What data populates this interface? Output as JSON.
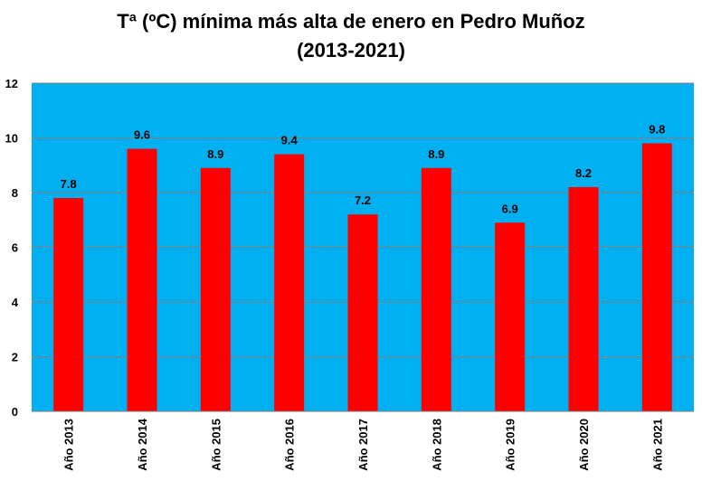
{
  "chart_data": {
    "type": "bar",
    "title": "Tª (ºC) mínima más alta de enero en Pedro Muñoz",
    "subtitle": "(2013-2021)",
    "xlabel": "",
    "ylabel": "",
    "categories": [
      "Año 2013",
      "Año 2014",
      "Año 2015",
      "Año 2016",
      "Año 2017",
      "Año 2018",
      "Año 2019",
      "Año 2020",
      "Año 2021"
    ],
    "values": [
      7.8,
      9.6,
      8.9,
      9.4,
      7.2,
      8.9,
      6.9,
      8.2,
      9.8
    ],
    "value_labels": [
      "7.8",
      "9.6",
      "8.9",
      "9.4",
      "7.2",
      "8.9",
      "6.9",
      "8.2",
      "9.8"
    ],
    "ylim": [
      0,
      12
    ],
    "yticks": [
      0,
      2,
      4,
      6,
      8,
      10,
      12
    ],
    "grid": true,
    "legend": "none",
    "colors": {
      "bar": "#ff0000",
      "plot_background": "#00b0f0",
      "gridline": "#7f7f7f"
    }
  }
}
